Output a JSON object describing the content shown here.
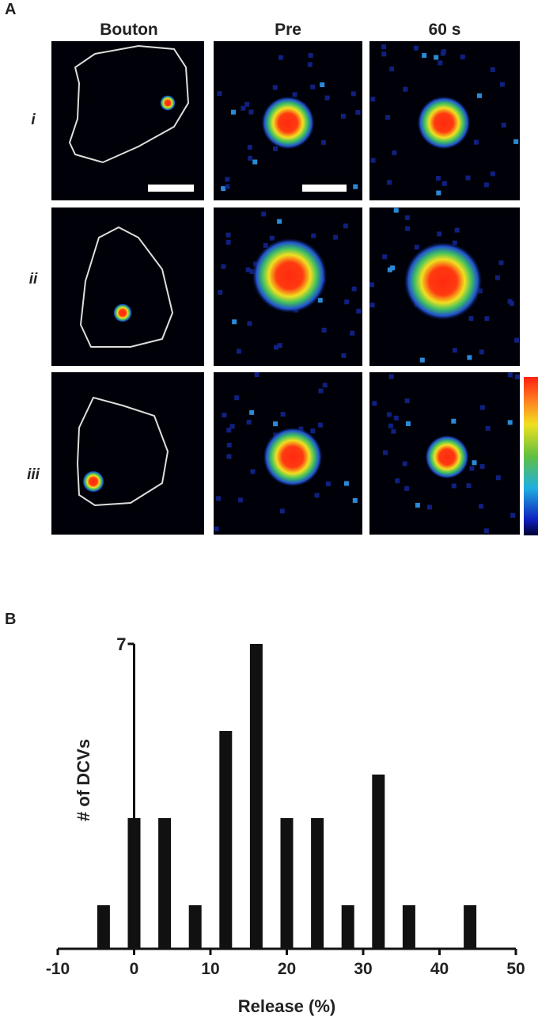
{
  "panel_a": {
    "label": "A",
    "columns": [
      "Bouton",
      "Pre",
      "60 s"
    ],
    "rows": [
      "i",
      "ii",
      "iii"
    ]
  },
  "panel_b": {
    "label": "B"
  },
  "chart_data": {
    "type": "bar",
    "x": [
      -4,
      0,
      4,
      8,
      12,
      16,
      20,
      24,
      28,
      32,
      36,
      44
    ],
    "values": [
      1,
      3,
      3,
      1,
      5,
      7,
      3,
      3,
      1,
      4,
      1,
      1
    ],
    "color": "#111111",
    "xlim": [
      -10,
      50
    ],
    "xticks": [
      -10,
      0,
      10,
      20,
      30,
      40,
      50
    ],
    "ylim": [
      0,
      7
    ],
    "yticks": [
      7
    ],
    "xlabel": "Release (%)",
    "ylabel": "# of DCVs"
  }
}
